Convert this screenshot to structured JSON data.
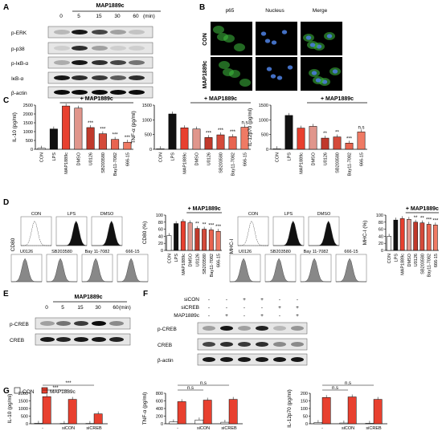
{
  "figure": {
    "panel_letters": [
      "A",
      "B",
      "C",
      "D",
      "E",
      "F",
      "G"
    ],
    "panelA": {
      "treatment": "MAP1889c",
      "timepoints": [
        "0",
        "5",
        "15",
        "30",
        "60"
      ],
      "unit": "(min)",
      "rows": [
        "p-ERK",
        "p-p38",
        "p-IκB-α",
        "IκB-α",
        "β-actin"
      ]
    },
    "panelB": {
      "columns": [
        "p65",
        "Nucleus",
        "Merge"
      ],
      "rows": [
        "CON",
        "MAP1889c"
      ]
    },
    "panelC": {
      "treatment_header": "+ MAP1889c",
      "categories": [
        "CON",
        "LPS",
        "MAP1889c",
        "DMSO",
        "U0126",
        "SB203580",
        "Bay11-7082",
        "666-15"
      ],
      "charts": [
        {
          "ylabel": "IL-10 (pg/ml)",
          "ticks": [
            "0",
            "500",
            "1000",
            "1500",
            "2000",
            "2500"
          ],
          "ylim": [
            0,
            2500
          ],
          "values": [
            60,
            1150,
            2450,
            2330,
            1230,
            880,
            560,
            400
          ],
          "sig": [
            "",
            "",
            "",
            "",
            "***",
            "***",
            "***",
            "***"
          ]
        },
        {
          "ylabel": "TNF-α (pg/ml)",
          "ticks": [
            "0",
            "500",
            "1000",
            "1500"
          ],
          "ylim": [
            0,
            1500
          ],
          "values": [
            20,
            1200,
            730,
            690,
            400,
            490,
            430,
            750
          ],
          "sig": [
            "",
            "",
            "",
            "",
            "***",
            "***",
            "***",
            "n.s"
          ]
        },
        {
          "ylabel": "IL-12p70 (pg/ml)",
          "ticks": [
            "0",
            "500",
            "1000",
            "1500"
          ],
          "ylim": [
            0,
            1500
          ],
          "values": [
            20,
            1150,
            720,
            780,
            380,
            420,
            210,
            590
          ],
          "sig": [
            "",
            "",
            "",
            "",
            "**",
            "**",
            "***",
            "n.s"
          ]
        }
      ]
    },
    "panelD": {
      "treatment_header": "+ MAP1889c",
      "cd80": {
        "axis": "CD80",
        "hist_top": [
          "CON",
          "LPS",
          "DMSO"
        ],
        "hist_bottom": [
          "U0126",
          "SB203580",
          "Bay 11-7082",
          "666-15"
        ],
        "ylabel": "CD80 (%)",
        "ticks": [
          "0",
          "20",
          "40",
          "60",
          "80",
          "100"
        ],
        "ylim": [
          0,
          100
        ],
        "categories": [
          "CON",
          "LPS",
          "MAP1889c",
          "DMSO",
          "U0126",
          "SB203580",
          "Bay11-7082",
          "666-15"
        ],
        "values": [
          42,
          76,
          82,
          78,
          62,
          60,
          58,
          54
        ],
        "sig": [
          "",
          "",
          "",
          "",
          "**",
          "**",
          "***",
          "***"
        ]
      },
      "mhc": {
        "axis": "MHC-I",
        "hist_top": [
          "CON",
          "LPS",
          "DMSO"
        ],
        "hist_bottom": [
          "U0126",
          "SB203580",
          "Bay 11-7082",
          "666-15"
        ],
        "ylabel": "MHC-I (%)",
        "ticks": [
          "0",
          "20",
          "40",
          "60",
          "80",
          "100"
        ],
        "ylim": [
          0,
          100
        ],
        "categories": [
          "CON",
          "LPS",
          "MAP1889c",
          "DMSO",
          "U0126",
          "SB203580",
          "Bay11-7082",
          "666-15"
        ],
        "values": [
          40,
          86,
          90,
          88,
          80,
          78,
          74,
          72
        ],
        "sig": [
          "",
          "",
          "",
          "",
          "**",
          "**",
          "***",
          "***"
        ]
      }
    },
    "panelE": {
      "treatment": "MAP1889c",
      "timepoints": [
        "0",
        "5",
        "15",
        "30",
        "60"
      ],
      "unit": "(min)",
      "rows": [
        "p-CREB",
        "CREB"
      ]
    },
    "panelF": {
      "conditions": [
        {
          "label": "siCON",
          "marks": [
            "-",
            "-",
            "+",
            "+",
            "-",
            "-"
          ]
        },
        {
          "label": "siCREB",
          "marks": [
            "-",
            "-",
            "-",
            "-",
            "+",
            "+"
          ]
        },
        {
          "label": "MAP1889c",
          "marks": [
            "-",
            "+",
            "-",
            "+",
            "-",
            "+"
          ]
        }
      ],
      "rows": [
        "p-CREB",
        "CREB",
        "β-actin"
      ]
    },
    "panelG": {
      "legend": [
        "CON",
        "MAP1889c"
      ],
      "groups": [
        "-",
        "siCON",
        "siCREB"
      ],
      "charts": [
        {
          "ylabel": "IL-10 (pg/ml)",
          "ticks": [
            "0",
            "500",
            "1000",
            "1500",
            "2000"
          ],
          "ylim": [
            0,
            2000
          ],
          "values": [
            [
              30,
              1780
            ],
            [
              20,
              1600
            ],
            [
              20,
              650
            ]
          ],
          "sig": "***"
        },
        {
          "ylabel": "TNF-α (pg/ml)",
          "ticks": [
            "0",
            "200",
            "400",
            "600",
            "800"
          ],
          "ylim": [
            0,
            800
          ],
          "values": [
            [
              50,
              580
            ],
            [
              100,
              620
            ],
            [
              40,
              640
            ]
          ],
          "sig": "n.s"
        },
        {
          "ylabel": "IL-12p70 (pg/ml)",
          "ticks": [
            "0",
            "50",
            "100",
            "150",
            "200"
          ],
          "ylim": [
            0,
            200
          ],
          "values": [
            [
              8,
              172
            ],
            [
              5,
              176
            ],
            [
              3,
              160
            ]
          ],
          "sig": "n.s"
        }
      ]
    }
  },
  "chart_data": [
    {
      "type": "bar",
      "title": "",
      "ylabel": "IL-10 (pg/ml)",
      "ylim": [
        0,
        2500
      ],
      "categories": [
        "CON",
        "LPS",
        "MAP1889c",
        "DMSO",
        "U0126",
        "SB203580",
        "Bay11-7082",
        "666-15"
      ],
      "values": [
        60,
        1150,
        2450,
        2330,
        1230,
        880,
        560,
        400
      ]
    },
    {
      "type": "bar",
      "title": "",
      "ylabel": "TNF-α (pg/ml)",
      "ylim": [
        0,
        1500
      ],
      "categories": [
        "CON",
        "LPS",
        "MAP1889c",
        "DMSO",
        "U0126",
        "SB203580",
        "Bay11-7082",
        "666-15"
      ],
      "values": [
        20,
        1200,
        730,
        690,
        400,
        490,
        430,
        750
      ]
    },
    {
      "type": "bar",
      "title": "",
      "ylabel": "IL-12p70 (pg/ml)",
      "ylim": [
        0,
        1500
      ],
      "categories": [
        "CON",
        "LPS",
        "MAP1889c",
        "DMSO",
        "U0126",
        "SB203580",
        "Bay11-7082",
        "666-15"
      ],
      "values": [
        20,
        1150,
        720,
        780,
        380,
        420,
        210,
        590
      ]
    },
    {
      "type": "bar",
      "title": "",
      "ylabel": "CD80 (%)",
      "ylim": [
        0,
        100
      ],
      "categories": [
        "CON",
        "LPS",
        "MAP1889c",
        "DMSO",
        "U0126",
        "SB203580",
        "Bay11-7082",
        "666-15"
      ],
      "values": [
        42,
        76,
        82,
        78,
        62,
        60,
        58,
        54
      ]
    },
    {
      "type": "bar",
      "title": "",
      "ylabel": "MHC-I (%)",
      "ylim": [
        0,
        100
      ],
      "categories": [
        "CON",
        "LPS",
        "MAP1889c",
        "DMSO",
        "U0126",
        "SB203580",
        "Bay11-7082",
        "666-15"
      ],
      "values": [
        40,
        86,
        90,
        88,
        80,
        78,
        74,
        72
      ]
    },
    {
      "type": "bar",
      "title": "",
      "ylabel": "IL-10 (pg/ml)",
      "ylim": [
        0,
        2000
      ],
      "categories": [
        "-",
        "siCON",
        "siCREB"
      ],
      "series": [
        {
          "name": "CON",
          "values": [
            30,
            20,
            20
          ]
        },
        {
          "name": "MAP1889c",
          "values": [
            1780,
            1600,
            650
          ]
        }
      ]
    },
    {
      "type": "bar",
      "title": "",
      "ylabel": "TNF-α (pg/ml)",
      "ylim": [
        0,
        800
      ],
      "categories": [
        "-",
        "siCON",
        "siCREB"
      ],
      "series": [
        {
          "name": "CON",
          "values": [
            50,
            100,
            40
          ]
        },
        {
          "name": "MAP1889c",
          "values": [
            580,
            620,
            640
          ]
        }
      ]
    },
    {
      "type": "bar",
      "title": "",
      "ylabel": "IL-12p70 (pg/ml)",
      "ylim": [
        0,
        200
      ],
      "categories": [
        "-",
        "siCON",
        "siCREB"
      ],
      "series": [
        {
          "name": "CON",
          "values": [
            8,
            5,
            3
          ]
        },
        {
          "name": "MAP1889c",
          "values": [
            172,
            176,
            160
          ]
        }
      ]
    }
  ],
  "colors": {
    "con": "#ffffff",
    "lps": "#111111",
    "map": "#e8402f",
    "dmso": "#e0968c",
    "u0126": "#c0392b",
    "sb": "#d44a3a",
    "bay": "#e86450",
    "t666": "#ef7a64",
    "sig": "#cc0000",
    "highlight": "#f6b8e6",
    "green": "#3fbf3f",
    "blue": "#4a7bd8"
  }
}
